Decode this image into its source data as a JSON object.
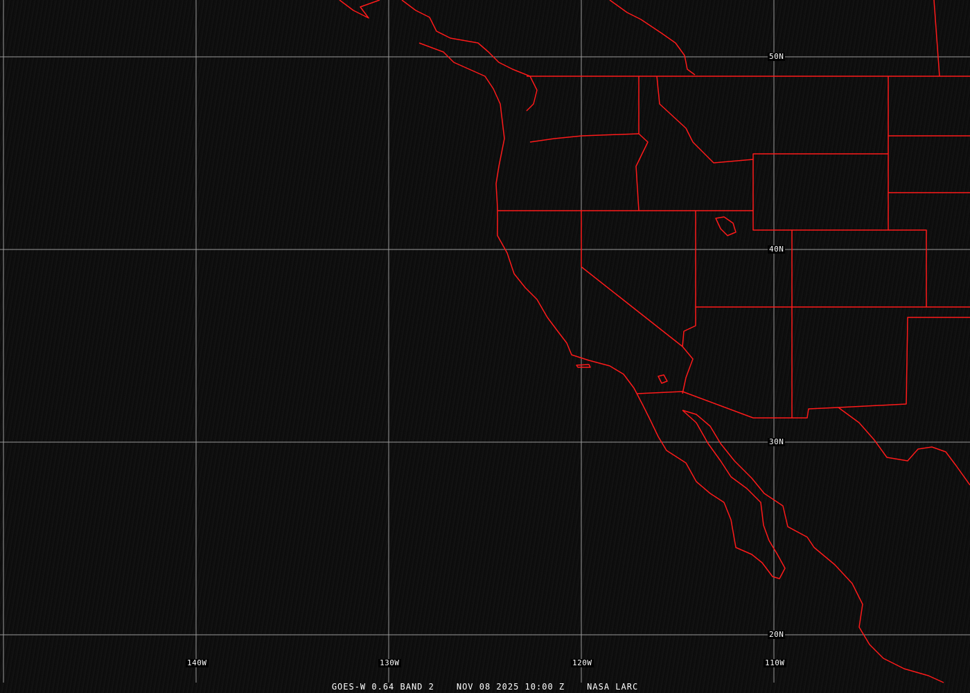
{
  "map": {
    "projection_labels": {
      "latitudes": [
        "50N",
        "40N",
        "30N",
        "20N"
      ],
      "longitudes": [
        "140W",
        "130W",
        "120W",
        "110W"
      ]
    },
    "colors": {
      "boundaries": "#ff0000",
      "grid": "#9a9a9a",
      "background": "#0e0e0e",
      "text": "#ffffff"
    }
  },
  "caption": {
    "satellite": "GOES-W 0.64 BAND 2",
    "datetime": "NOV 08 2025 10:00 Z",
    "source": "NASA LARC"
  }
}
